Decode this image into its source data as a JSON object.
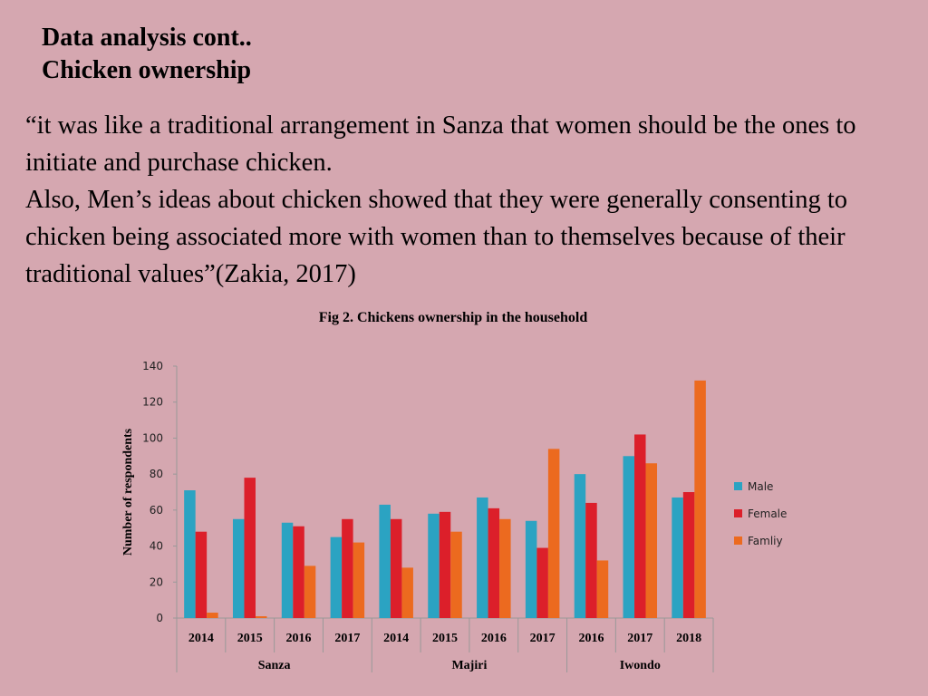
{
  "slide": {
    "title_line1": "Data analysis cont..",
    "title_line2": "Chicken ownership",
    "quote_line1": "“it was like a traditional arrangement in Sanza that women should be the ones to initiate and purchase chicken.",
    "quote_line2": "Also, Men’s ideas about chicken showed that they were generally consenting to chicken being associated more with women than to themselves because of their traditional values”(Zakia, 2017)"
  },
  "chart_data": {
    "type": "bar",
    "title": "Fig 2. Chickens ownership in the household",
    "ylabel": "Number of respondents",
    "xlabel": "",
    "ylim": [
      0,
      140
    ],
    "yticks": [
      0,
      20,
      40,
      60,
      80,
      100,
      120,
      140
    ],
    "categories": [
      "2014",
      "2015",
      "2016",
      "2017",
      "2014",
      "2015",
      "2016",
      "2017",
      "2016",
      "2017",
      "2018"
    ],
    "groups": [
      {
        "name": "Sanza",
        "count": 4
      },
      {
        "name": "Majiri",
        "count": 4
      },
      {
        "name": "Iwondo",
        "count": 3
      }
    ],
    "series": [
      {
        "name": "Male",
        "color": "#2ba3c2",
        "values": [
          71,
          55,
          53,
          45,
          63,
          58,
          67,
          54,
          80,
          90,
          67
        ]
      },
      {
        "name": "Female",
        "color": "#dc1f2a",
        "values": [
          48,
          78,
          51,
          55,
          55,
          59,
          61,
          39,
          64,
          102,
          70
        ]
      },
      {
        "name": "Famliy",
        "color": "#ec6a1f",
        "values": [
          3,
          1,
          29,
          42,
          28,
          48,
          55,
          94,
          32,
          86,
          132
        ]
      }
    ],
    "legend": "right",
    "grid": false
  }
}
